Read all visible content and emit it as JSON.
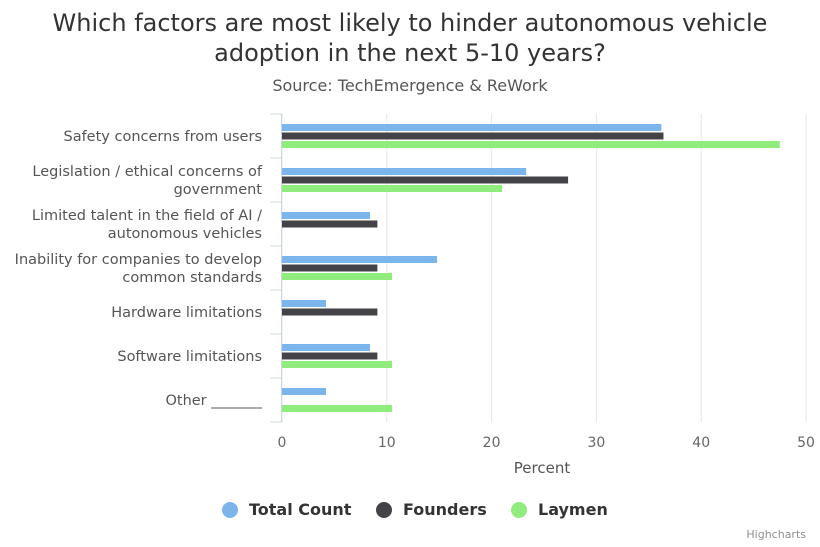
{
  "chart_data": {
    "type": "bar",
    "orientation": "horizontal",
    "title_lines": [
      "Which factors are most likely to hinder autonomous vehicle",
      "adoption in the next 5-10 years?"
    ],
    "subtitle": "Source: TechEmergence & ReWork",
    "categories": [
      [
        "Safety concerns from users"
      ],
      [
        "Legislation / ethical concerns of",
        "government"
      ],
      [
        "Limited talent in the field of AI /",
        "autonomous vehicles"
      ],
      [
        "Inability for companies to develop",
        "common standards"
      ],
      [
        "Hardware limitations"
      ],
      [
        "Software limitations"
      ],
      [
        "Other _______"
      ]
    ],
    "series": [
      {
        "name": "Total Count",
        "color": "#7cb5ec",
        "values": [
          36.2,
          23.3,
          8.4,
          14.8,
          4.2,
          8.4,
          4.2
        ]
      },
      {
        "name": "Founders",
        "color": "#434348",
        "values": [
          36.4,
          27.3,
          9.1,
          9.1,
          9.1,
          9.1,
          0
        ]
      },
      {
        "name": "Laymen",
        "color": "#90ed7d",
        "values": [
          47.5,
          21.0,
          0,
          10.5,
          0,
          10.5,
          10.5
        ]
      }
    ],
    "xlabel": "Percent",
    "xlim": [
      0,
      50
    ],
    "xticks": [
      0,
      10,
      20,
      30,
      40,
      50
    ],
    "grid": true,
    "legend_position": "bottom-center"
  },
  "credits": "Highcharts"
}
